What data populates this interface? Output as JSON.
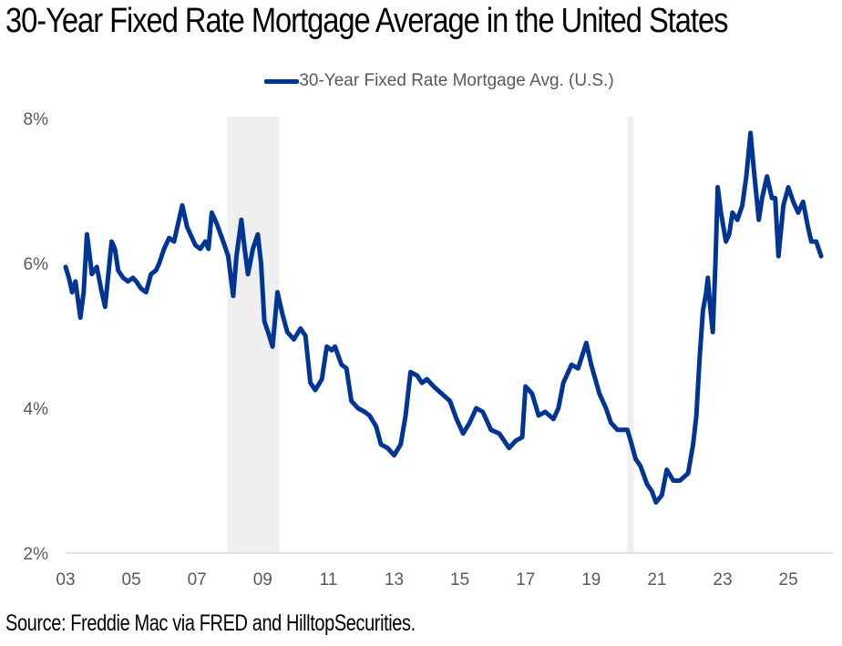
{
  "title": "30-Year Fixed Rate Mortgage Average in the United States",
  "source": "Source: Freddie Mac via FRED and HilltopSecurities.",
  "colors": {
    "line": "#003594",
    "recession": "#efefef",
    "axis": "#d9d9d9",
    "text": "#595959"
  },
  "chart_data": {
    "type": "line",
    "title": "30-Year Fixed Rate Mortgage Average in the United States",
    "xlabel": "",
    "ylabel": "",
    "legend": {
      "position": "top-center",
      "entries": [
        "30-Year Fixed Rate Mortgage Avg. (U.S.)"
      ]
    },
    "xlim": [
      2003,
      2026.1
    ],
    "ylim": [
      2,
      8
    ],
    "x_ticks": [
      {
        "value": 2003,
        "label": "03"
      },
      {
        "value": 2005,
        "label": "05"
      },
      {
        "value": 2007,
        "label": "07"
      },
      {
        "value": 2009,
        "label": "09"
      },
      {
        "value": 2011,
        "label": "11"
      },
      {
        "value": 2013,
        "label": "13"
      },
      {
        "value": 2015,
        "label": "15"
      },
      {
        "value": 2017,
        "label": "17"
      },
      {
        "value": 2019,
        "label": "19"
      },
      {
        "value": 2021,
        "label": "21"
      },
      {
        "value": 2023,
        "label": "23"
      },
      {
        "value": 2025,
        "label": "25"
      }
    ],
    "y_ticks": [
      {
        "value": 2,
        "label": "2%"
      },
      {
        "value": 4,
        "label": "4%"
      },
      {
        "value": 6,
        "label": "6%"
      },
      {
        "value": 8,
        "label": "8%"
      }
    ],
    "grid": false,
    "recessions": [
      {
        "start": 2007.92,
        "end": 2009.5
      },
      {
        "start": 2020.1,
        "end": 2020.3
      }
    ],
    "series": [
      {
        "name": "30-Year Fixed Rate Mortgage Avg. (U.S.)",
        "x": [
          2003.0,
          2003.1,
          2003.2,
          2003.3,
          2003.45,
          2003.55,
          2003.65,
          2003.72,
          2003.8,
          2003.95,
          2004.1,
          2004.2,
          2004.3,
          2004.4,
          2004.5,
          2004.6,
          2004.75,
          2004.9,
          2005.05,
          2005.15,
          2005.3,
          2005.45,
          2005.6,
          2005.75,
          2005.85,
          2006.0,
          2006.15,
          2006.3,
          2006.45,
          2006.55,
          2006.7,
          2006.85,
          2006.95,
          2007.1,
          2007.25,
          2007.35,
          2007.45,
          2007.6,
          2007.8,
          2007.95,
          2008.1,
          2008.2,
          2008.35,
          2008.45,
          2008.55,
          2008.7,
          2008.85,
          2008.95,
          2009.05,
          2009.2,
          2009.3,
          2009.45,
          2009.6,
          2009.75,
          2009.95,
          2010.15,
          2010.3,
          2010.45,
          2010.6,
          2010.8,
          2010.95,
          2011.1,
          2011.2,
          2011.4,
          2011.55,
          2011.7,
          2011.9,
          2012.1,
          2012.25,
          2012.45,
          2012.6,
          2012.8,
          2013.0,
          2013.2,
          2013.35,
          2013.5,
          2013.7,
          2013.85,
          2014.0,
          2014.2,
          2014.45,
          2014.7,
          2014.9,
          2015.1,
          2015.3,
          2015.5,
          2015.7,
          2015.95,
          2016.2,
          2016.5,
          2016.7,
          2016.9,
          2017.0,
          2017.2,
          2017.4,
          2017.6,
          2017.85,
          2018.0,
          2018.15,
          2018.4,
          2018.6,
          2018.85,
          2019.0,
          2019.25,
          2019.45,
          2019.6,
          2019.8,
          2020.1,
          2020.2,
          2020.35,
          2020.5,
          2020.7,
          2020.85,
          2020.97,
          2021.15,
          2021.3,
          2021.5,
          2021.7,
          2021.95,
          2022.1,
          2022.2,
          2022.3,
          2022.4,
          2022.5,
          2022.55,
          2022.62,
          2022.7,
          2022.78,
          2022.85,
          2022.95,
          2023.1,
          2023.2,
          2023.3,
          2023.45,
          2023.6,
          2023.72,
          2023.85,
          2023.95,
          2024.1,
          2024.2,
          2024.35,
          2024.5,
          2024.6,
          2024.7,
          2024.85,
          2025.0,
          2025.15,
          2025.3,
          2025.45,
          2025.6,
          2025.7,
          2025.85,
          2026.0
        ],
        "values": [
          5.95,
          5.8,
          5.6,
          5.75,
          5.25,
          5.6,
          6.4,
          6.15,
          5.85,
          5.95,
          5.6,
          5.4,
          5.85,
          6.3,
          6.2,
          5.9,
          5.8,
          5.75,
          5.8,
          5.75,
          5.65,
          5.6,
          5.85,
          5.9,
          6.0,
          6.2,
          6.35,
          6.3,
          6.6,
          6.8,
          6.5,
          6.35,
          6.25,
          6.2,
          6.3,
          6.2,
          6.7,
          6.55,
          6.3,
          6.1,
          5.55,
          6.1,
          6.6,
          6.2,
          5.85,
          6.2,
          6.4,
          6.0,
          5.2,
          5.0,
          4.85,
          5.6,
          5.3,
          5.05,
          4.95,
          5.1,
          5.0,
          4.35,
          4.25,
          4.4,
          4.85,
          4.8,
          4.85,
          4.6,
          4.55,
          4.1,
          4.0,
          3.95,
          3.9,
          3.75,
          3.5,
          3.45,
          3.35,
          3.5,
          3.9,
          4.5,
          4.45,
          4.35,
          4.4,
          4.3,
          4.2,
          4.1,
          3.85,
          3.65,
          3.8,
          4.0,
          3.95,
          3.7,
          3.65,
          3.45,
          3.55,
          3.6,
          4.3,
          4.2,
          3.9,
          3.95,
          3.85,
          4.0,
          4.35,
          4.6,
          4.55,
          4.9,
          4.6,
          4.2,
          4.0,
          3.8,
          3.7,
          3.7,
          3.55,
          3.3,
          3.2,
          2.95,
          2.85,
          2.7,
          2.8,
          3.15,
          3.0,
          3.0,
          3.1,
          3.5,
          3.9,
          4.7,
          5.35,
          5.6,
          5.8,
          5.4,
          5.05,
          6.0,
          7.05,
          6.7,
          6.3,
          6.4,
          6.7,
          6.6,
          6.8,
          7.2,
          7.8,
          7.3,
          6.6,
          6.9,
          7.2,
          6.9,
          6.9,
          6.1,
          6.8,
          7.05,
          6.85,
          6.7,
          6.85,
          6.5,
          6.3,
          6.3,
          6.1
        ]
      }
    ]
  }
}
